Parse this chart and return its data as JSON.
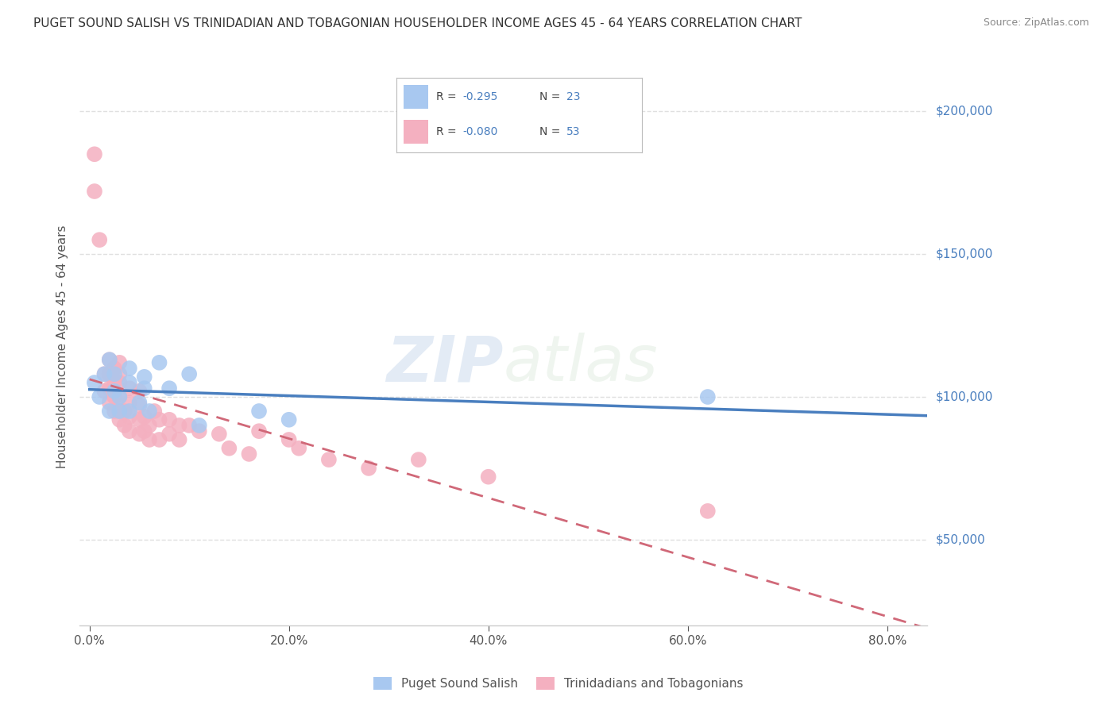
{
  "title": "PUGET SOUND SALISH VS TRINIDADIAN AND TOBAGONIAN HOUSEHOLDER INCOME AGES 45 - 64 YEARS CORRELATION CHART",
  "source": "Source: ZipAtlas.com",
  "ylabel": "Householder Income Ages 45 - 64 years",
  "xlabel_ticks": [
    "0.0%",
    "20.0%",
    "40.0%",
    "60.0%",
    "80.0%"
  ],
  "xlabel_values": [
    0.0,
    0.2,
    0.4,
    0.6,
    0.8
  ],
  "ylabel_ticks": [
    "$50,000",
    "$100,000",
    "$150,000",
    "$200,000"
  ],
  "ylabel_values": [
    50000,
    100000,
    150000,
    200000
  ],
  "ylim": [
    20000,
    215000
  ],
  "xlim": [
    -0.01,
    0.84
  ],
  "watermark_top": "ZIP",
  "watermark_bottom": "atlas",
  "blue_label": "Puget Sound Salish",
  "pink_label": "Trinidadians and Tobagonians",
  "blue_R": -0.295,
  "blue_N": 23,
  "pink_R": -0.08,
  "pink_N": 53,
  "blue_color": "#a8c8f0",
  "pink_color": "#f4b0c0",
  "blue_line_color": "#4a7fbf",
  "pink_line_color": "#d06878",
  "background_color": "#ffffff",
  "grid_color": "#e0e0e0",
  "title_color": "#333333",
  "axis_label_color": "#555555",
  "legend_text_color": "#4a7fbf",
  "blue_scatter_x": [
    0.005,
    0.01,
    0.015,
    0.02,
    0.02,
    0.025,
    0.025,
    0.03,
    0.03,
    0.04,
    0.04,
    0.04,
    0.05,
    0.055,
    0.055,
    0.06,
    0.07,
    0.08,
    0.1,
    0.11,
    0.17,
    0.2,
    0.62
  ],
  "blue_scatter_y": [
    105000,
    100000,
    108000,
    95000,
    113000,
    102000,
    108000,
    95000,
    100000,
    95000,
    105000,
    110000,
    98000,
    103000,
    107000,
    95000,
    112000,
    103000,
    108000,
    90000,
    95000,
    92000,
    100000
  ],
  "pink_scatter_x": [
    0.005,
    0.005,
    0.01,
    0.015,
    0.015,
    0.02,
    0.02,
    0.02,
    0.02,
    0.025,
    0.025,
    0.025,
    0.025,
    0.03,
    0.03,
    0.03,
    0.03,
    0.03,
    0.03,
    0.035,
    0.035,
    0.04,
    0.04,
    0.04,
    0.04,
    0.05,
    0.05,
    0.05,
    0.05,
    0.055,
    0.055,
    0.06,
    0.06,
    0.065,
    0.07,
    0.07,
    0.08,
    0.08,
    0.09,
    0.09,
    0.1,
    0.11,
    0.13,
    0.14,
    0.16,
    0.17,
    0.2,
    0.21,
    0.24,
    0.28,
    0.33,
    0.4,
    0.62
  ],
  "pink_scatter_y": [
    172000,
    185000,
    155000,
    102000,
    108000,
    98000,
    103000,
    108000,
    113000,
    95000,
    100000,
    105000,
    110000,
    92000,
    95000,
    100000,
    105000,
    108000,
    112000,
    90000,
    95000,
    88000,
    93000,
    98000,
    103000,
    87000,
    92000,
    97000,
    102000,
    88000,
    93000,
    85000,
    90000,
    95000,
    85000,
    92000,
    87000,
    92000,
    85000,
    90000,
    90000,
    88000,
    87000,
    82000,
    80000,
    88000,
    85000,
    82000,
    78000,
    75000,
    78000,
    72000,
    60000
  ]
}
